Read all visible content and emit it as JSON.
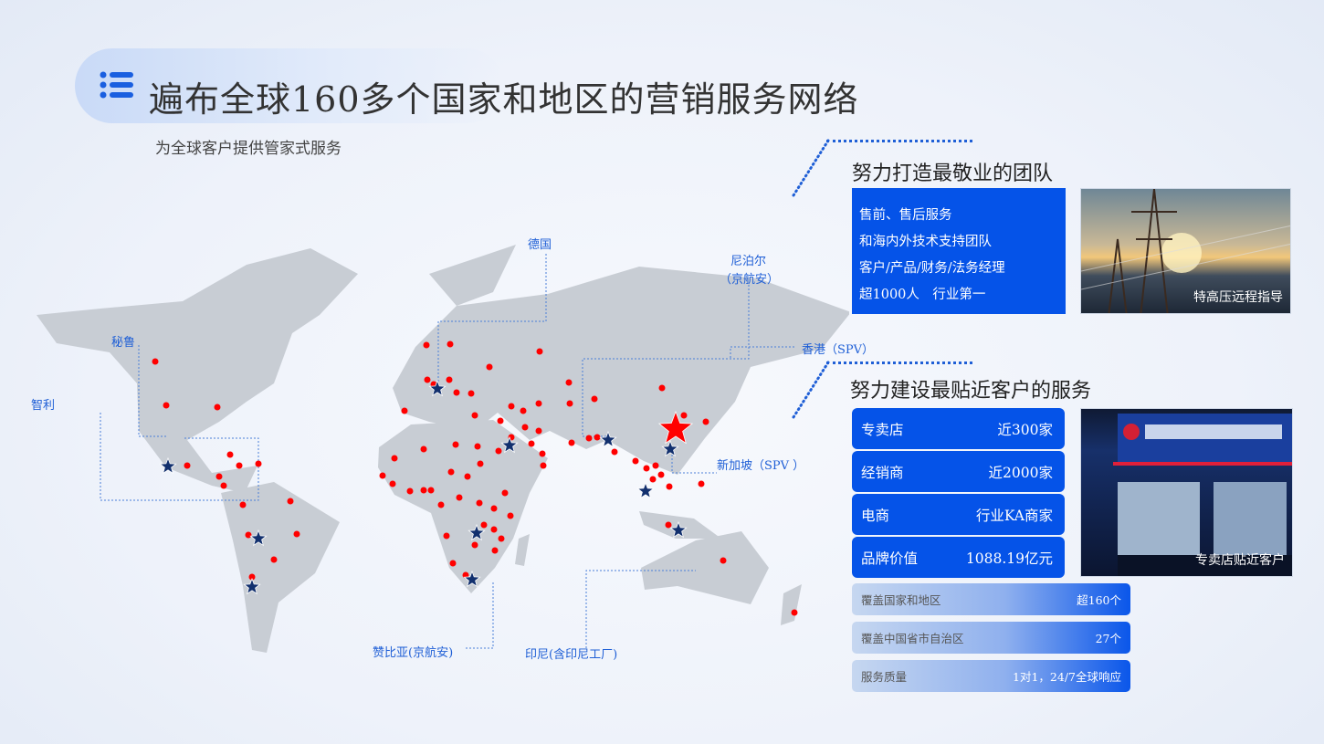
{
  "header": {
    "title": "遍布全球160多个国家和地区的营销服务网络",
    "subtitle": "为全球客户提供管家式服务",
    "icon": "list-icon"
  },
  "map": {
    "labels": {
      "germany": "德国",
      "nepal": "尼泊尔",
      "nepal_sub": "（京航安）",
      "hongkong": "香港（SPV）",
      "singapore": "新加坡（SPV ）",
      "peru": "秘鲁",
      "chile": "智利",
      "zambia": "赞比亚(京航安)",
      "indonesia": "印尼(含印尼工厂)"
    },
    "colors": {
      "land": "#c8cdd4",
      "dot": "#ff0000",
      "star": "#12306e",
      "hq_star": "#ff0000"
    }
  },
  "team": {
    "title": "努力打造最敬业的团队",
    "lines": [
      "售前、售后服务",
      "和海内外技术支持团队",
      "客户/产品/财务/法务经理",
      "超1000人　行业第一"
    ],
    "photo_caption": "特高压远程指导"
  },
  "service": {
    "title": "努力建设最贴近客户的服务",
    "items": [
      {
        "label": "专卖店",
        "value": "近300家"
      },
      {
        "label": "经销商",
        "value": "近2000家"
      },
      {
        "label": "电商",
        "value": "行业KA商家"
      },
      {
        "label": "品牌价值",
        "value": "1088.19亿元"
      }
    ],
    "bars": [
      {
        "label": "覆盖国家和地区",
        "value": "超160个"
      },
      {
        "label": "覆盖中国省市自治区",
        "value": "27个"
      },
      {
        "label": "服务质量",
        "value": "1对1，24/7全球响应"
      }
    ],
    "photo_caption": "专卖店贴近客户"
  }
}
